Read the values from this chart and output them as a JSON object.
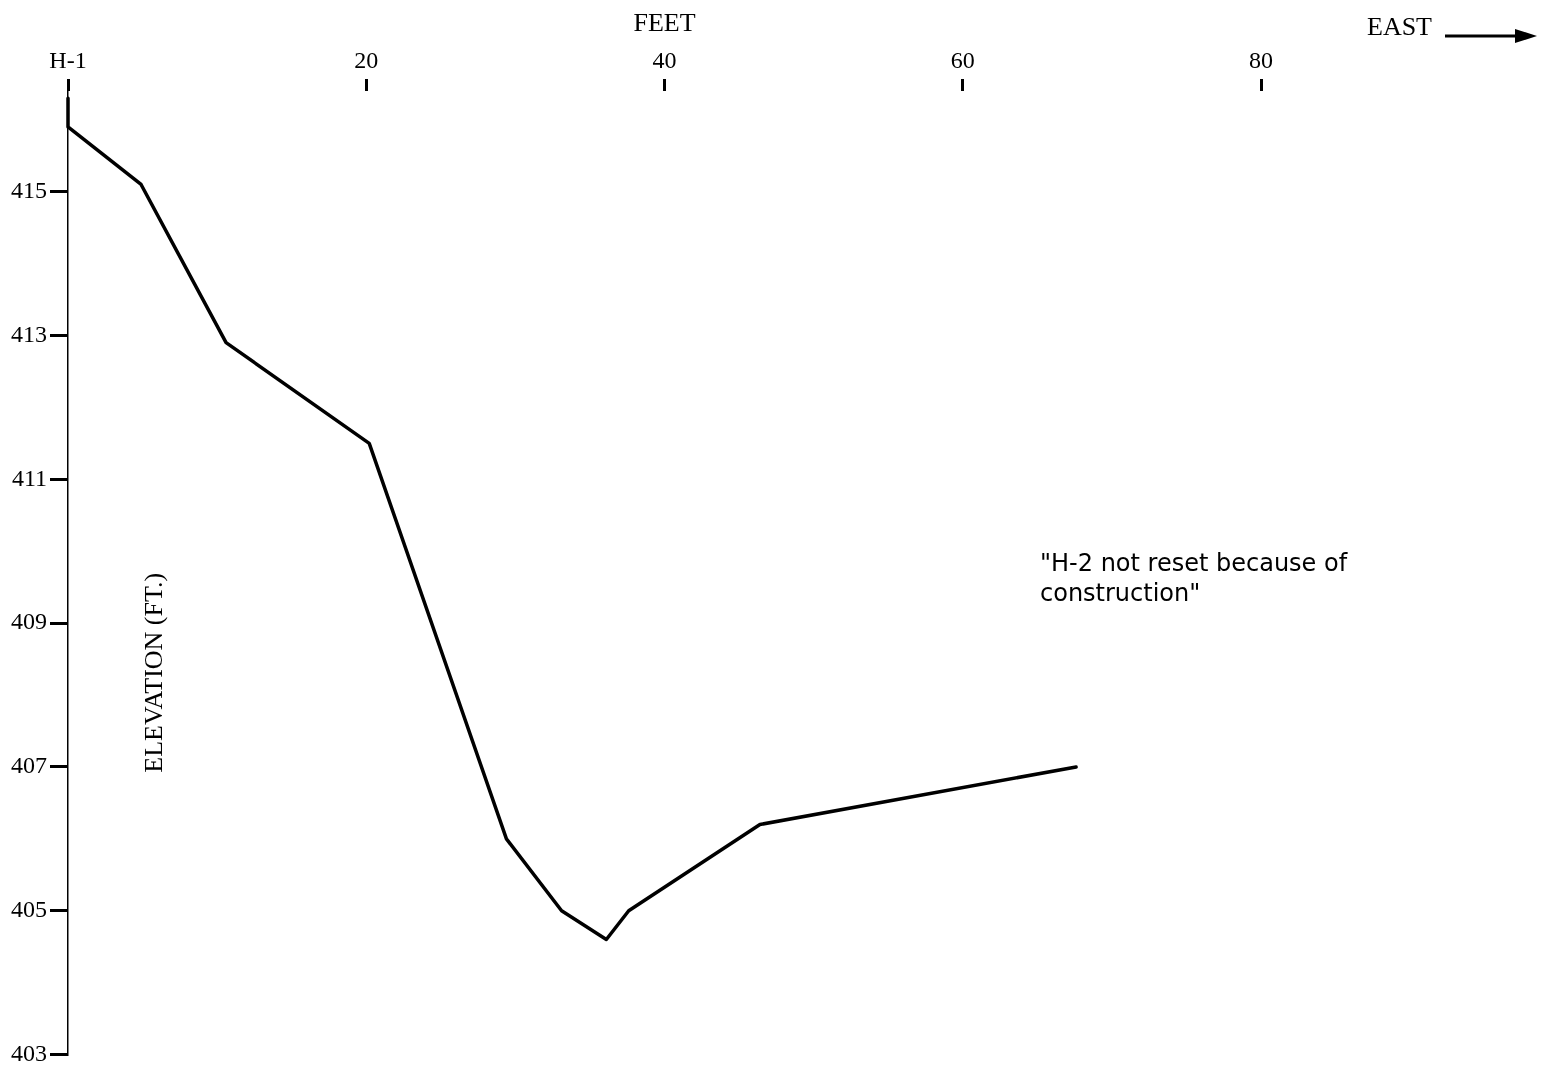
{
  "chart_data": {
    "type": "line",
    "xlabel": "FEET",
    "ylabel": "ELEVATION (FT.)",
    "x": [
      0,
      0,
      4.9,
      10.6,
      20.2,
      29.4,
      33.1,
      36.1,
      37.6,
      46.4,
      67.6
    ],
    "series": [
      {
        "color": "#000000",
        "values": [
          416.3,
          415.9,
          415.1,
          412.9,
          411.5,
          406.0,
          405.0,
          404.6,
          405.0,
          406.2,
          407.0
        ]
      }
    ],
    "xlim": [
      0,
      80
    ],
    "xticks": [
      {
        "value": 0,
        "label": "H-1"
      },
      20,
      40,
      60,
      80
    ],
    "ylim": [
      403,
      416.4
    ],
    "yticks": [
      403,
      405,
      407,
      409,
      411,
      413,
      415
    ],
    "annotations": [
      "EAST",
      "\"H-2 not reset because of construction\""
    ],
    "grid": false,
    "legend": false,
    "marker": "none",
    "line_style": "solid"
  }
}
